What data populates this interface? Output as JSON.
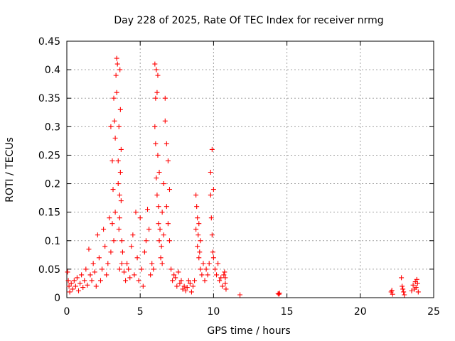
{
  "chart_data": {
    "type": "scatter",
    "title": "Day 228 of 2025, Rate Of TEC Index for receiver nrmg",
    "xlabel": "GPS time / hours",
    "ylabel": "ROTI / TECUs",
    "xlim": [
      0,
      25
    ],
    "ylim": [
      0,
      0.45
    ],
    "x_ticks": [
      0,
      5,
      10,
      15,
      20,
      25
    ],
    "x_tick_labels": [
      "0",
      "5",
      "10",
      "15",
      "20",
      "25"
    ],
    "y_ticks": [
      0,
      0.05,
      0.1,
      0.15,
      0.2,
      0.25,
      0.3,
      0.35,
      0.4,
      0.45
    ],
    "y_tick_labels": [
      "0",
      "0.05",
      "0.1",
      "0.15",
      "0.2",
      "0.25",
      "0.3",
      "0.35",
      "0.4",
      "0.45"
    ],
    "grid": true,
    "marker": "plus",
    "color": "#ff0000",
    "series": [
      {
        "name": "ROTI",
        "x": [
          0.05,
          0.1,
          0.15,
          0.2,
          0.3,
          0.4,
          0.5,
          0.6,
          0.7,
          0.8,
          0.9,
          1.0,
          1.1,
          1.2,
          1.3,
          1.4,
          1.5,
          1.6,
          1.7,
          1.8,
          1.9,
          2.0,
          2.1,
          2.2,
          2.3,
          2.4,
          2.5,
          2.6,
          2.7,
          2.8,
          2.9,
          3.0,
          3.0,
          3.1,
          3.1,
          3.15,
          3.2,
          3.2,
          3.25,
          3.3,
          3.3,
          3.35,
          3.4,
          3.4,
          3.45,
          3.5,
          3.5,
          3.55,
          3.55,
          3.6,
          3.6,
          3.6,
          3.62,
          3.65,
          3.65,
          3.7,
          3.7,
          3.75,
          3.75,
          3.8,
          3.9,
          4.0,
          4.1,
          4.2,
          4.3,
          4.4,
          4.5,
          4.6,
          4.7,
          4.8,
          4.9,
          5.0,
          5.1,
          5.2,
          5.3,
          5.4,
          5.5,
          5.6,
          5.7,
          5.8,
          5.9,
          6.0,
          6.0,
          6.05,
          6.05,
          6.1,
          6.1,
          6.15,
          6.15,
          6.2,
          6.2,
          6.25,
          6.25,
          6.3,
          6.3,
          6.35,
          6.4,
          6.45,
          6.5,
          6.5,
          6.6,
          6.6,
          6.7,
          6.7,
          6.8,
          6.8,
          6.9,
          6.9,
          7.0,
          7.0,
          7.1,
          7.2,
          7.3,
          7.4,
          7.5,
          7.6,
          7.7,
          7.8,
          7.9,
          8.0,
          8.1,
          8.2,
          8.3,
          8.4,
          8.5,
          8.6,
          8.7,
          8.8,
          8.8,
          8.85,
          8.9,
          8.9,
          8.95,
          9.0,
          9.0,
          9.05,
          9.1,
          9.1,
          9.2,
          9.3,
          9.4,
          9.5,
          9.6,
          9.7,
          9.8,
          9.8,
          9.85,
          9.9,
          9.9,
          9.95,
          10.0,
          10.0,
          10.1,
          10.2,
          10.3,
          10.4,
          10.5,
          10.6,
          10.7,
          10.75,
          10.8,
          10.8,
          10.85,
          11.8,
          14.4,
          14.45,
          14.5,
          22.1,
          22.15,
          22.2,
          22.8,
          22.85,
          22.9,
          22.95,
          23.0,
          23.5,
          23.6,
          23.7,
          23.75,
          23.8,
          23.85,
          23.9,
          23.95
        ],
        "values": [
          0.045,
          0.03,
          0.02,
          0.01,
          0.025,
          0.015,
          0.03,
          0.02,
          0.035,
          0.012,
          0.025,
          0.04,
          0.018,
          0.03,
          0.05,
          0.022,
          0.085,
          0.04,
          0.03,
          0.06,
          0.045,
          0.02,
          0.11,
          0.07,
          0.03,
          0.05,
          0.12,
          0.09,
          0.04,
          0.06,
          0.14,
          0.08,
          0.3,
          0.13,
          0.24,
          0.19,
          0.35,
          0.1,
          0.31,
          0.28,
          0.15,
          0.39,
          0.42,
          0.36,
          0.41,
          0.24,
          0.2,
          0.3,
          0.12,
          0.14,
          0.05,
          0.18,
          0.4,
          0.22,
          0.33,
          0.26,
          0.17,
          0.1,
          0.06,
          0.08,
          0.045,
          0.03,
          0.06,
          0.05,
          0.035,
          0.09,
          0.11,
          0.04,
          0.15,
          0.07,
          0.03,
          0.14,
          0.05,
          0.02,
          0.08,
          0.1,
          0.155,
          0.12,
          0.04,
          0.06,
          0.05,
          0.3,
          0.41,
          0.35,
          0.27,
          0.4,
          0.21,
          0.36,
          0.18,
          0.39,
          0.25,
          0.16,
          0.13,
          0.22,
          0.1,
          0.12,
          0.07,
          0.09,
          0.06,
          0.15,
          0.2,
          0.11,
          0.35,
          0.31,
          0.16,
          0.27,
          0.24,
          0.13,
          0.1,
          0.19,
          0.05,
          0.03,
          0.04,
          0.035,
          0.02,
          0.045,
          0.025,
          0.03,
          0.015,
          0.02,
          0.012,
          0.018,
          0.03,
          0.025,
          0.01,
          0.02,
          0.03,
          0.18,
          0.12,
          0.16,
          0.09,
          0.14,
          0.11,
          0.13,
          0.07,
          0.08,
          0.05,
          0.1,
          0.04,
          0.06,
          0.03,
          0.05,
          0.04,
          0.06,
          0.18,
          0.22,
          0.14,
          0.26,
          0.11,
          0.08,
          0.19,
          0.07,
          0.05,
          0.04,
          0.06,
          0.03,
          0.035,
          0.02,
          0.04,
          0.045,
          0.025,
          0.035,
          0.015,
          0.005,
          0.007,
          0.006,
          0.008,
          0.01,
          0.013,
          0.006,
          0.035,
          0.02,
          0.015,
          0.01,
          0.005,
          0.012,
          0.022,
          0.015,
          0.028,
          0.018,
          0.032,
          0.025,
          0.01
        ]
      }
    ]
  }
}
